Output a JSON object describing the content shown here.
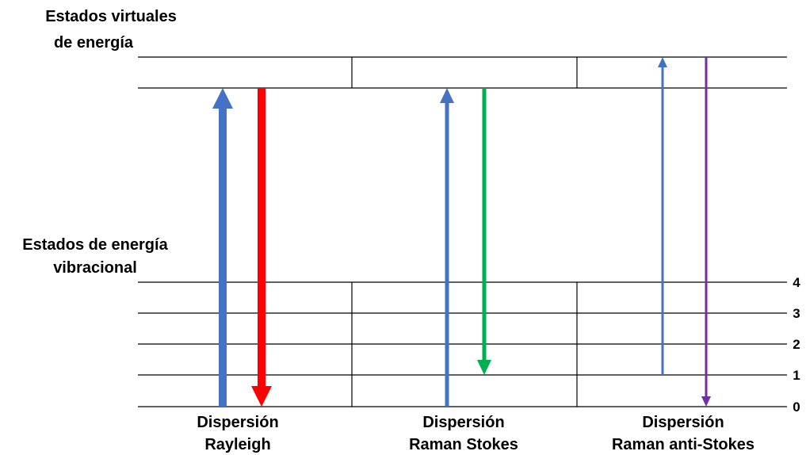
{
  "labels": {
    "virtual_states": [
      "Estados virtuales",
      "de energía"
    ],
    "vibrational_states": [
      "Estados de energía",
      "vibracional"
    ]
  },
  "levels": [
    "0",
    "1",
    "2",
    "3",
    "4"
  ],
  "columns": [
    {
      "title": [
        "Dispersión",
        "Rayleigh"
      ]
    },
    {
      "title": [
        "Dispersión",
        "Raman Stokes"
      ]
    },
    {
      "title": [
        "Dispersión",
        "Raman anti-Stokes"
      ]
    }
  ],
  "transitions": [
    {
      "process": "Rayleigh",
      "direction": "up",
      "from_level": "0",
      "to": "virtual",
      "color": "#4472C4"
    },
    {
      "process": "Rayleigh",
      "direction": "down",
      "from": "virtual",
      "to_level": "0",
      "color": "#FF0000"
    },
    {
      "process": "Raman Stokes",
      "direction": "up",
      "from_level": "0",
      "to": "virtual",
      "color": "#4472C4"
    },
    {
      "process": "Raman Stokes",
      "direction": "down",
      "from": "virtual",
      "to_level": "1",
      "color": "#00B050"
    },
    {
      "process": "Raman anti-Stokes",
      "direction": "up",
      "from_level": "1",
      "to": "virtual",
      "color": "#4472C4"
    },
    {
      "process": "Raman anti-Stokes",
      "direction": "down",
      "from": "virtual",
      "to_level": "0",
      "color": "#7030A0"
    }
  ],
  "colors": {
    "line": "#000000",
    "excitation": "#4472C4",
    "rayleigh": "#FF0000",
    "stokes": "#00B050",
    "anti_stokes": "#7030A0"
  }
}
